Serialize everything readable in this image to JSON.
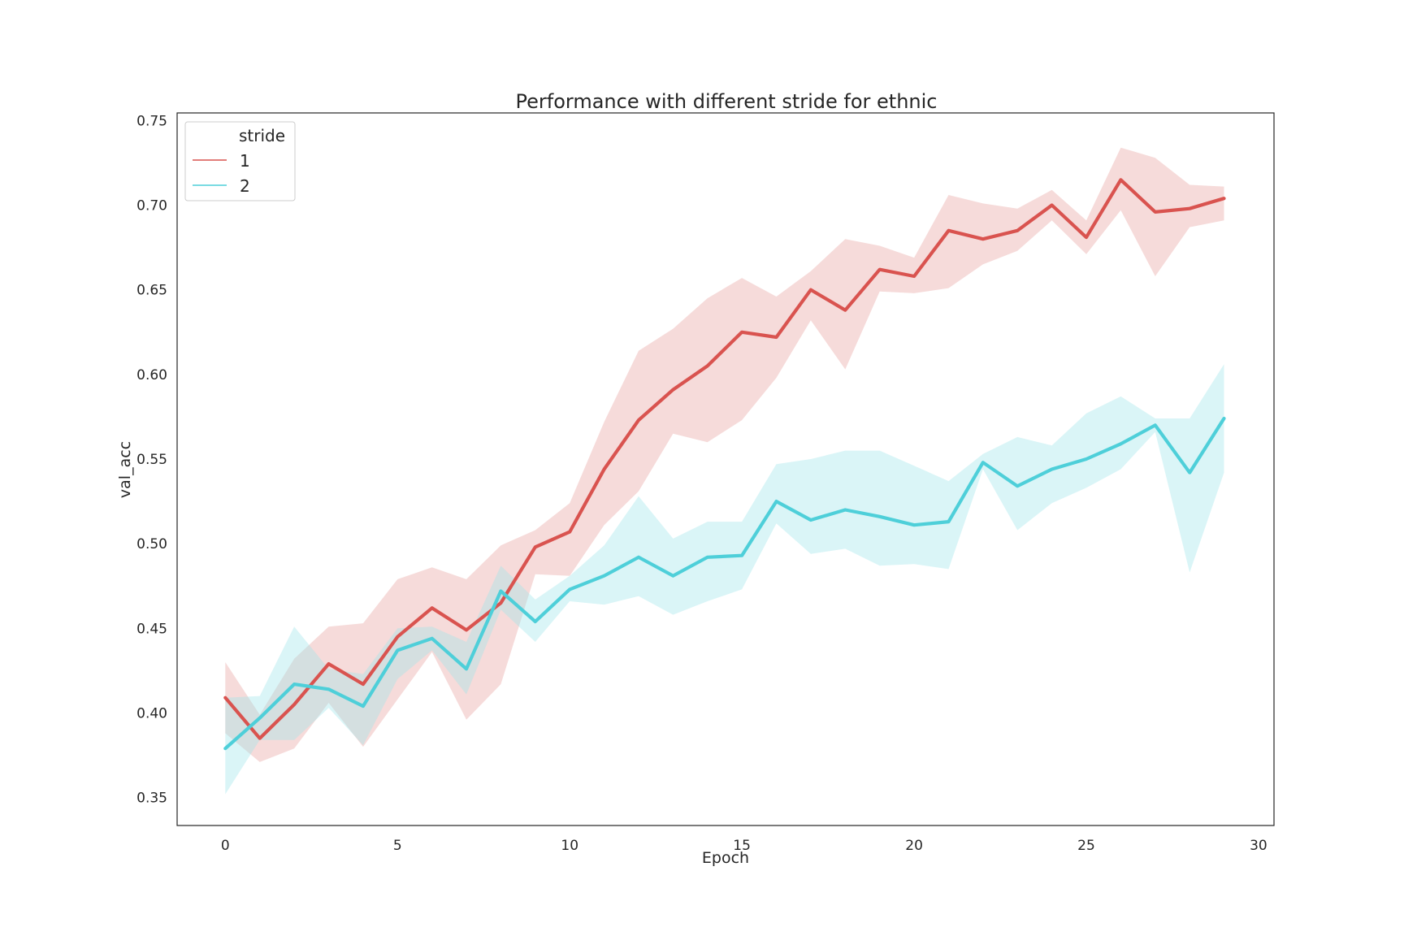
{
  "chart_data": {
    "type": "line",
    "title": "Performance with different stride for ethnic",
    "xlabel": "Epoch",
    "ylabel": "val_acc",
    "xlim": [
      -1.4,
      30.45
    ],
    "ylim": [
      0.3335,
      0.7545
    ],
    "xticks": [
      0,
      5,
      10,
      15,
      20,
      25,
      30
    ],
    "yticks": [
      0.35,
      0.4,
      0.45,
      0.5,
      0.55,
      0.6,
      0.65,
      0.7,
      0.75
    ],
    "xtick_labels": [
      "0",
      "5",
      "10",
      "15",
      "20",
      "25",
      "30"
    ],
    "ytick_labels": [
      "0.35",
      "0.40",
      "0.45",
      "0.50",
      "0.55",
      "0.60",
      "0.65",
      "0.70",
      "0.75"
    ],
    "grid": false,
    "legend": {
      "title": "stride",
      "placement": "top-left"
    },
    "x": [
      0,
      1,
      2,
      3,
      4,
      5,
      6,
      7,
      8,
      9,
      10,
      11,
      12,
      13,
      14,
      15,
      16,
      17,
      18,
      19,
      20,
      21,
      22,
      23,
      24,
      25,
      26,
      27,
      28,
      29
    ],
    "series": [
      {
        "name": "1",
        "color": "#d9534f",
        "band_color": "#e8a19f",
        "values": [
          0.409,
          0.385,
          0.405,
          0.429,
          0.417,
          0.445,
          0.462,
          0.449,
          0.465,
          0.498,
          0.507,
          0.544,
          0.573,
          0.591,
          0.605,
          0.625,
          0.622,
          0.65,
          0.638,
          0.662,
          0.658,
          0.685,
          0.68,
          0.685,
          0.7,
          0.681,
          0.715,
          0.696,
          0.698,
          0.704
        ],
        "lower": [
          0.388,
          0.371,
          0.379,
          0.406,
          0.38,
          0.408,
          0.436,
          0.396,
          0.417,
          0.482,
          0.481,
          0.511,
          0.531,
          0.565,
          0.56,
          0.573,
          0.598,
          0.632,
          0.603,
          0.649,
          0.648,
          0.651,
          0.665,
          0.673,
          0.691,
          0.671,
          0.697,
          0.658,
          0.687,
          0.691
        ],
        "upper": [
          0.43,
          0.399,
          0.432,
          0.451,
          0.453,
          0.479,
          0.486,
          0.479,
          0.499,
          0.508,
          0.524,
          0.572,
          0.614,
          0.627,
          0.645,
          0.657,
          0.646,
          0.661,
          0.68,
          0.676,
          0.669,
          0.706,
          0.701,
          0.698,
          0.709,
          0.691,
          0.734,
          0.728,
          0.712,
          0.711
        ]
      },
      {
        "name": "2",
        "color": "#4ecfd9",
        "band_color": "#9fe4ea",
        "values": [
          0.379,
          0.397,
          0.417,
          0.414,
          0.404,
          0.437,
          0.444,
          0.426,
          0.472,
          0.454,
          0.473,
          0.481,
          0.492,
          0.481,
          0.492,
          0.493,
          0.525,
          0.514,
          0.52,
          0.516,
          0.511,
          0.513,
          0.548,
          0.534,
          0.544,
          0.55,
          0.559,
          0.57,
          0.542,
          0.574
        ],
        "lower": [
          0.352,
          0.384,
          0.384,
          0.403,
          0.381,
          0.42,
          0.437,
          0.411,
          0.461,
          0.442,
          0.466,
          0.464,
          0.469,
          0.458,
          0.466,
          0.473,
          0.512,
          0.494,
          0.497,
          0.487,
          0.488,
          0.485,
          0.544,
          0.508,
          0.524,
          0.533,
          0.544,
          0.566,
          0.483,
          0.542
        ],
        "upper": [
          0.409,
          0.41,
          0.451,
          0.426,
          0.423,
          0.45,
          0.451,
          0.442,
          0.487,
          0.467,
          0.481,
          0.499,
          0.528,
          0.503,
          0.513,
          0.513,
          0.547,
          0.55,
          0.555,
          0.555,
          0.546,
          0.537,
          0.553,
          0.563,
          0.558,
          0.577,
          0.587,
          0.574,
          0.574,
          0.606
        ]
      }
    ]
  }
}
